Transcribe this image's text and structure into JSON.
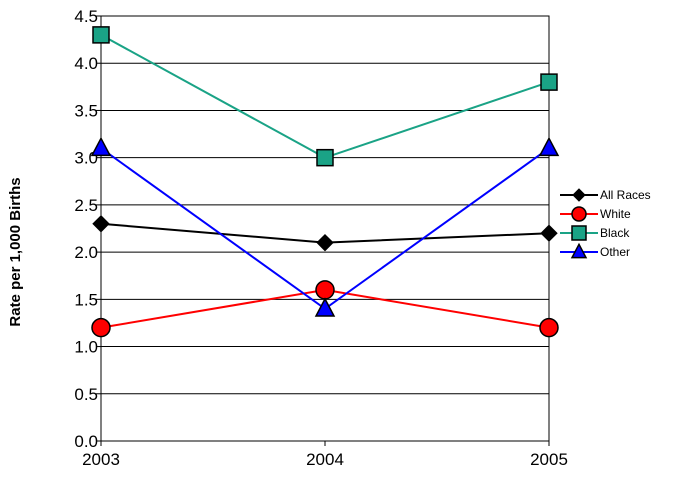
{
  "chart_data": {
    "type": "line",
    "ylabel": "Rate per 1,000 Births",
    "xlabel": "",
    "categories": [
      "2003",
      "2004",
      "2005"
    ],
    "ylim": [
      0.0,
      4.5
    ],
    "yticks": [
      "0.0",
      "0.5",
      "1.0",
      "1.5",
      "2.0",
      "2.5",
      "3.0",
      "3.5",
      "4.0",
      "4.5"
    ],
    "grid": "horizontal",
    "legend_position": "right",
    "series": [
      {
        "name": "All Races",
        "values": [
          2.3,
          2.1,
          2.2
        ],
        "color": "#000000",
        "marker": "diamond"
      },
      {
        "name": "White",
        "values": [
          1.2,
          1.6,
          1.2
        ],
        "color": "#ff0000",
        "marker": "circle"
      },
      {
        "name": "Black",
        "values": [
          4.3,
          3.0,
          3.8
        ],
        "color": "#1aa386",
        "marker": "square"
      },
      {
        "name": "Other",
        "values": [
          3.1,
          1.4,
          3.1
        ],
        "color": "#0000ff",
        "marker": "triangle"
      }
    ]
  }
}
